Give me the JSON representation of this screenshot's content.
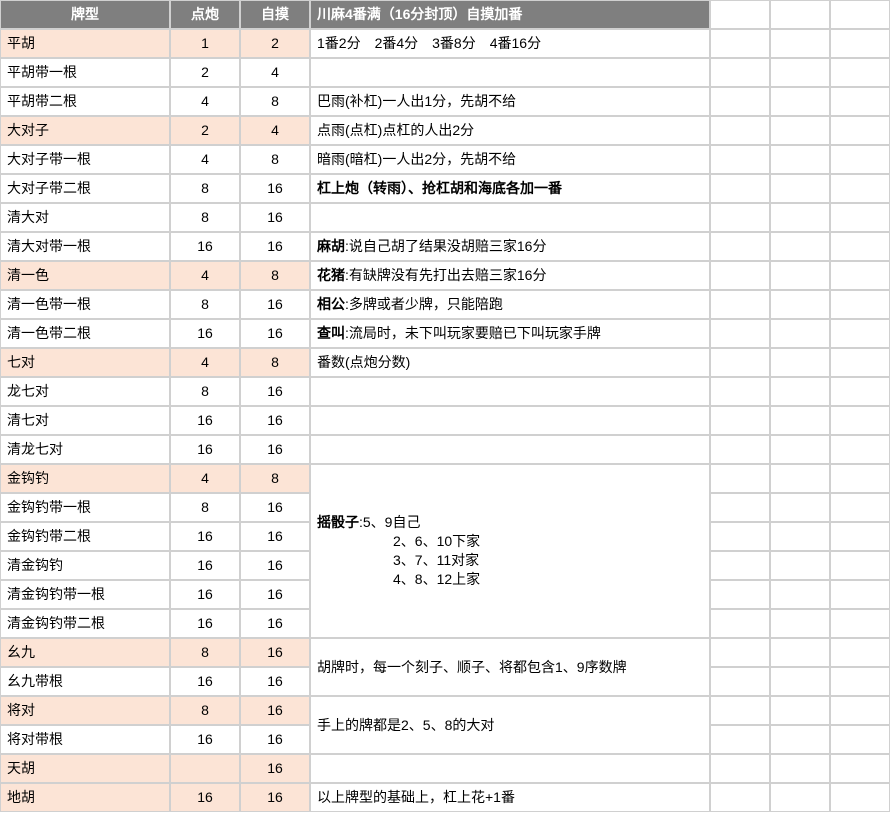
{
  "headers": {
    "col0": "牌型",
    "col1": "点炮",
    "col2": "自摸",
    "col3": "川麻4番满（16分封顶）自摸加番"
  },
  "rows": [
    {
      "hl": true,
      "c0": "平胡",
      "c1": "1",
      "c2": "2",
      "c3": "1番2分　2番4分　3番8分　4番16分"
    },
    {
      "hl": false,
      "c0": "平胡带一根",
      "c1": "2",
      "c2": "4",
      "c3": ""
    },
    {
      "hl": false,
      "c0": "平胡带二根",
      "c1": "4",
      "c2": "8",
      "c3": "巴雨(补杠)一人出1分，先胡不给"
    },
    {
      "hl": true,
      "c0": "大对子",
      "c1": "2",
      "c2": "4",
      "c3": "点雨(点杠)点杠的人出2分"
    },
    {
      "hl": false,
      "c0": "大对子带一根",
      "c1": "4",
      "c2": "8",
      "c3": "暗雨(暗杠)一人出2分，先胡不给"
    },
    {
      "hl": false,
      "c0": "大对子带二根",
      "c1": "8",
      "c2": "16",
      "c3": "杠上炮（转雨）、抢杠胡和海底各加一番",
      "c3bold": true
    },
    {
      "hl": false,
      "c0": "清大对",
      "c1": "8",
      "c2": "16",
      "c3": ""
    },
    {
      "hl": false,
      "c0": "清大对带一根",
      "c1": "16",
      "c2": "16",
      "c3": "麻胡:说自己胡了结果没胡赔三家16分",
      "c3lead": "麻胡"
    },
    {
      "hl": true,
      "c0": "清一色",
      "c1": "4",
      "c2": "8",
      "c3": "花猪:有缺牌没有先打出去赔三家16分",
      "c3lead": "花猪"
    },
    {
      "hl": false,
      "c0": "清一色带一根",
      "c1": "8",
      "c2": "16",
      "c3": "相公:多牌或者少牌，只能陪跑",
      "c3lead": "相公"
    },
    {
      "hl": false,
      "c0": "清一色带二根",
      "c1": "16",
      "c2": "16",
      "c3": "查叫:流局时，未下叫玩家要赔已下叫玩家手牌",
      "c3lead": "查叫"
    },
    {
      "hl": true,
      "c0": "七对",
      "c1": "4",
      "c2": "8",
      "c3": "番数(点炮分数)"
    },
    {
      "hl": false,
      "c0": "龙七对",
      "c1": "8",
      "c2": "16",
      "c3": ""
    },
    {
      "hl": false,
      "c0": "清七对",
      "c1": "16",
      "c2": "16",
      "c3": ""
    },
    {
      "hl": false,
      "c0": "清龙七对",
      "c1": "16",
      "c2": "16",
      "c3": ""
    },
    {
      "hl": true,
      "c0": "金钩钓",
      "c1": "4",
      "c2": "8"
    },
    {
      "hl": false,
      "c0": "金钩钓带一根",
      "c1": "8",
      "c2": "16"
    },
    {
      "hl": false,
      "c0": "金钩钓带二根",
      "c1": "16",
      "c2": "16"
    },
    {
      "hl": false,
      "c0": "清金钩钓",
      "c1": "16",
      "c2": "16"
    },
    {
      "hl": false,
      "c0": "清金钩钓带一根",
      "c1": "16",
      "c2": "16"
    },
    {
      "hl": false,
      "c0": "清金钩钓带二根",
      "c1": "16",
      "c2": "16"
    },
    {
      "hl": true,
      "c0": "幺九",
      "c1": "8",
      "c2": "16"
    },
    {
      "hl": false,
      "c0": "幺九带根",
      "c1": "16",
      "c2": "16"
    },
    {
      "hl": true,
      "c0": "将对",
      "c1": "8",
      "c2": "16"
    },
    {
      "hl": false,
      "c0": "将对带根",
      "c1": "16",
      "c2": "16"
    },
    {
      "hl": true,
      "c0": "天胡",
      "c1": "",
      "c2": "16",
      "c3": ""
    },
    {
      "hl": true,
      "c0": "地胡",
      "c1": "16",
      "c2": "16",
      "c3": "以上牌型的基础上，杠上花+1番"
    }
  ],
  "jingou_block": {
    "l1_lead": "摇骰子",
    "l1_rest": ":5、9自己",
    "l2": "2、6、10下家",
    "l3": "3、7、11对家",
    "l4": "4、8、12上家"
  },
  "yaojiu_block": "胡牌时，每一个刻子、顺子、将都包含1、9序数牌",
  "jiangdui_block": "手上的牌都是2、5、8的大对",
  "colors": {
    "header_bg": "#7f7f7f",
    "header_fg": "#ffffff",
    "highlight_bg": "#fce4d6",
    "grid": "#d0d0d0"
  }
}
